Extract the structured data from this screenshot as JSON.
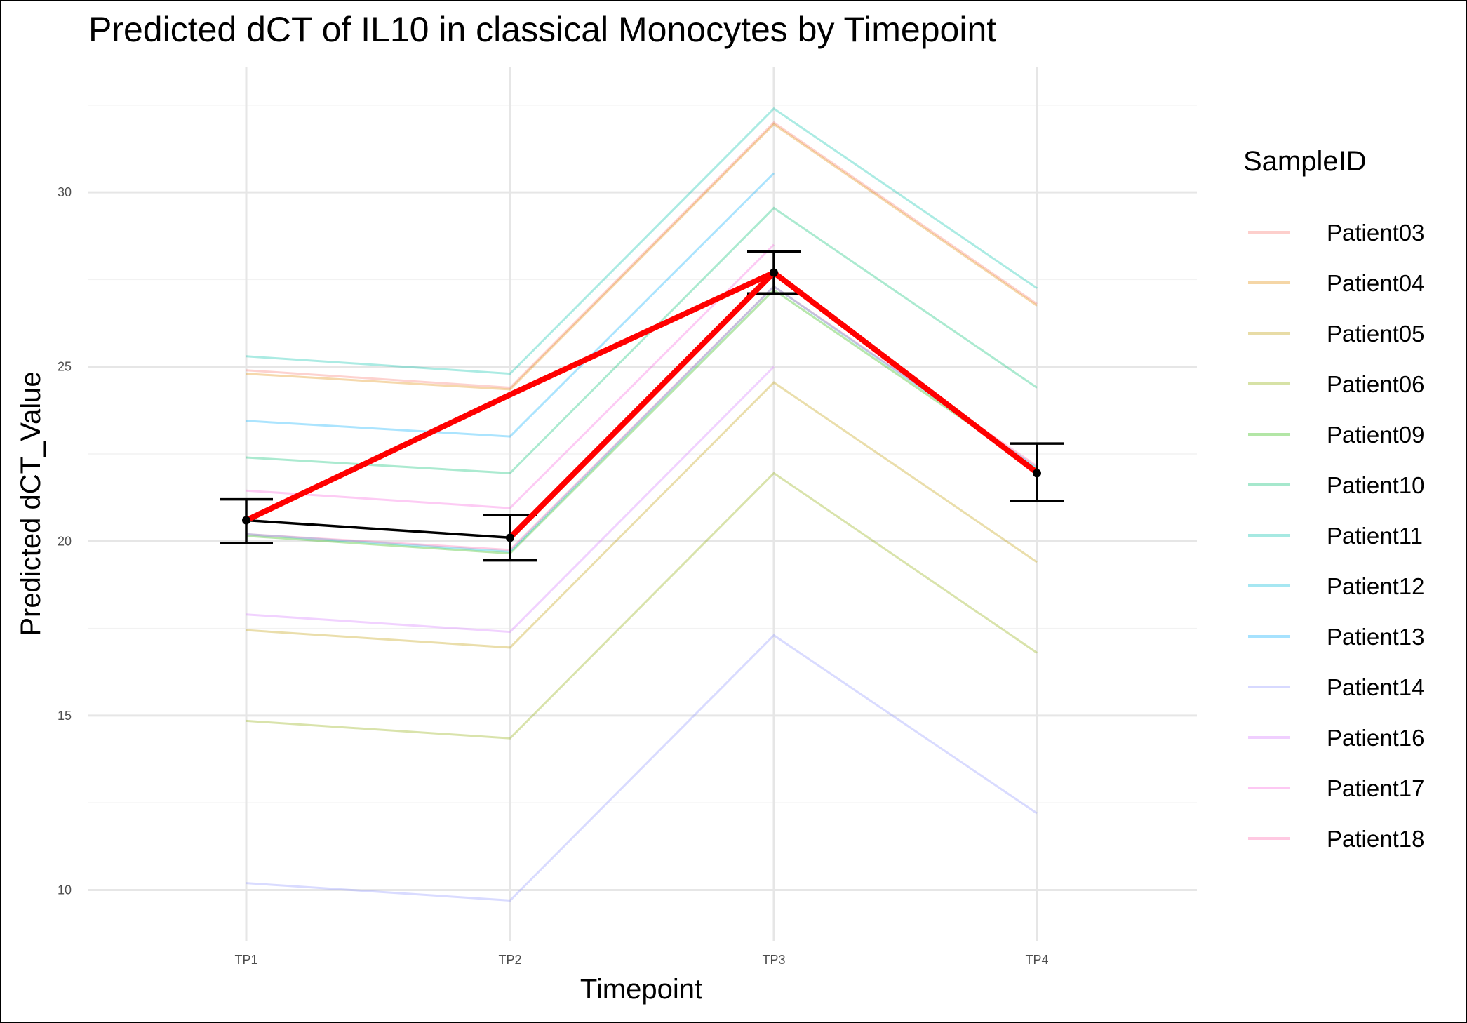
{
  "chart_data": {
    "type": "line",
    "title": "Predicted dCT of  IL10 in  classical  Monocytes by Timepoint",
    "xlabel": "Timepoint",
    "ylabel": "Predicted dCT_Value",
    "categories": [
      "TP1",
      "TP2",
      "TP3",
      "TP4"
    ],
    "yticks": [
      10,
      15,
      20,
      25,
      30
    ],
    "ylim": [
      8.5,
      32.8
    ],
    "grid": true,
    "legend": {
      "title": "SampleID",
      "position": "right"
    },
    "series": [
      {
        "name": "Patient03",
        "color": "#F8766D",
        "values": [
          24.9,
          24.4,
          32.0,
          26.8
        ]
      },
      {
        "name": "Patient04",
        "color": "#E18A00",
        "values": [
          24.8,
          24.35,
          31.95,
          26.75
        ]
      },
      {
        "name": "Patient05",
        "color": "#BE9C00",
        "values": [
          17.45,
          16.95,
          24.55,
          19.4
        ]
      },
      {
        "name": "Patient06",
        "color": "#8CAB00",
        "values": [
          14.85,
          14.35,
          21.95,
          16.8
        ]
      },
      {
        "name": "Patient09",
        "color": "#24B700",
        "values": [
          20.15,
          19.65,
          27.2,
          22.05
        ]
      },
      {
        "name": "Patient10",
        "color": "#00BE70",
        "values": [
          22.4,
          21.95,
          29.55,
          24.4
        ]
      },
      {
        "name": "Patient11",
        "color": "#00C1AB",
        "values": [
          25.3,
          24.8,
          32.4,
          27.25
        ]
      },
      {
        "name": "Patient12",
        "color": "#00BBDA",
        "values": [
          20.2,
          19.7,
          27.3,
          22.1
        ]
      },
      {
        "name": "Patient13",
        "color": "#00ACFC",
        "values": [
          23.45,
          23.0,
          30.55,
          null
        ]
      },
      {
        "name": "Patient14",
        "color": "#8B93FF",
        "values": [
          10.2,
          9.7,
          17.3,
          12.2
        ]
      },
      {
        "name": "Patient16",
        "color": "#D575FE",
        "values": [
          17.9,
          17.4,
          25.0,
          null
        ]
      },
      {
        "name": "Patient17",
        "color": "#F962DD",
        "values": [
          21.45,
          20.95,
          28.5,
          null
        ]
      },
      {
        "name": "Patient18",
        "color": "#FF65AC",
        "values": [
          20.2,
          19.75,
          27.3,
          22.15
        ]
      }
    ],
    "mean": {
      "values": [
        20.6,
        20.1,
        27.7,
        21.95
      ],
      "error_low": [
        19.95,
        19.45,
        27.1,
        21.15
      ],
      "error_high": [
        21.2,
        20.75,
        28.3,
        22.8
      ]
    },
    "trend_line": {
      "color": "#FF0000",
      "path": [
        [
          1,
          20.6
        ],
        [
          2,
          24.2
        ],
        [
          3,
          27.7
        ],
        [
          2,
          20.1
        ],
        [
          3,
          27.7
        ],
        [
          4,
          21.95
        ]
      ]
    }
  }
}
